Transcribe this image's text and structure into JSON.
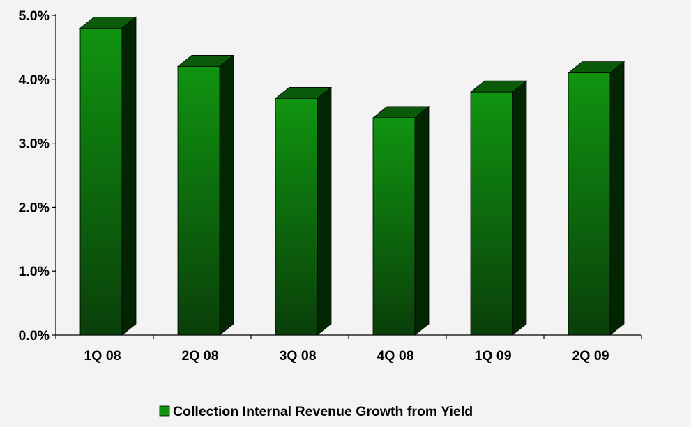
{
  "colors": {
    "background": "#f3f3f3",
    "bar_front_top": "#109410",
    "bar_front_bottom": "#0a3f0a",
    "bar_top_face": "#0a5a0a",
    "bar_side_face": "#022602",
    "axis": "#000000"
  },
  "legend": {
    "icon": "green-square-icon",
    "label": "Collection Internal Revenue Growth from Yield"
  },
  "chart_data": {
    "type": "bar",
    "title": "",
    "xlabel": "",
    "ylabel": "",
    "categories": [
      "1Q 08",
      "2Q 08",
      "3Q 08",
      "4Q 08",
      "1Q 09",
      "2Q 09"
    ],
    "series": [
      {
        "name": "Collection Internal Revenue Growth from Yield",
        "values": [
          4.8,
          4.2,
          3.7,
          3.4,
          3.8,
          4.1
        ]
      }
    ],
    "ylim": [
      0,
      5
    ],
    "yticks": [
      0,
      1,
      2,
      3,
      4,
      5
    ],
    "ytick_labels": [
      "0.0%",
      "1.0%",
      "2.0%",
      "3.0%",
      "4.0%",
      "5.0%"
    ],
    "grid": false,
    "legend_position": "bottom",
    "three_d": true
  }
}
